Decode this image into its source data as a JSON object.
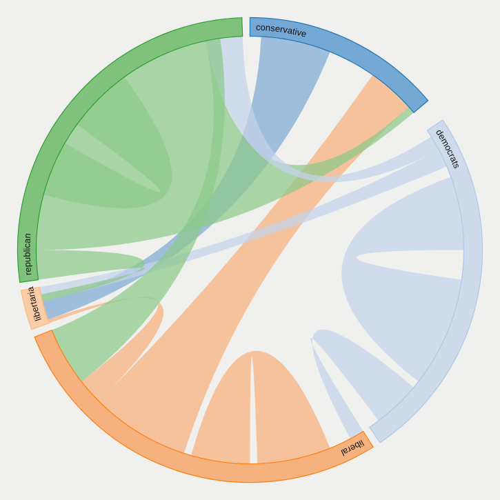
{
  "chart_data": {
    "type": "chord",
    "groups": [
      {
        "name": "conservative",
        "color": "#1f77b4",
        "fill_color": "#5e9cd0",
        "ribbon_color": "#7eabd4"
      },
      {
        "name": "democrats",
        "color": "#aec7e8",
        "fill_color": "#c9d7ea",
        "ribbon_color": "#c4d3ea"
      },
      {
        "name": "liberal",
        "color": "#ff7f0e",
        "fill_color": "#f6a76a",
        "ribbon_color": "#f7b07c"
      },
      {
        "name": "libertarian",
        "color": "#ffbb78",
        "fill_color": "#fcc79b",
        "ribbon_color": "#fcc79b"
      },
      {
        "name": "republican",
        "color": "#2ca02c",
        "fill_color": "#6cba69",
        "ribbon_color": "#8cc98a"
      }
    ],
    "chords": [
      {
        "source": "conservative",
        "target": "libertarian"
      },
      {
        "source": "liberal",
        "target": "conservative"
      },
      {
        "source": "republican",
        "target": "conservative"
      },
      {
        "source": "democrats",
        "target": "republican"
      },
      {
        "source": "democrats",
        "target": "libertarian"
      },
      {
        "source": "democrats",
        "target": "liberal"
      },
      {
        "source": "liberal",
        "target": "libertarian"
      },
      {
        "source": "republican",
        "target": "liberal"
      },
      {
        "source": "republican",
        "target": "libertarian"
      },
      {
        "source": "democrats",
        "target": "democrats"
      },
      {
        "source": "liberal",
        "target": "liberal"
      },
      {
        "source": "republican",
        "target": "republican"
      }
    ]
  }
}
